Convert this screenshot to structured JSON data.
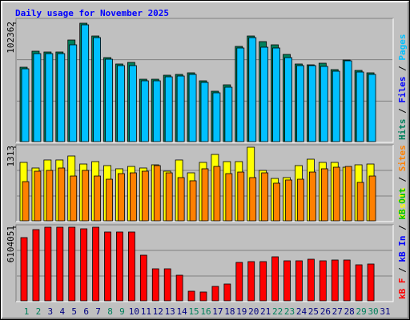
{
  "chart_data": [
    {
      "type": "bar",
      "title": "Daily usage for November 2025",
      "categories": [
        "1",
        "2",
        "3",
        "4",
        "5",
        "6",
        "7",
        "8",
        "9",
        "10",
        "11",
        "12",
        "13",
        "14",
        "15",
        "16",
        "17",
        "18",
        "19",
        "20",
        "21",
        "22",
        "23",
        "24",
        "25",
        "26",
        "27",
        "28",
        "29",
        "30",
        "31"
      ],
      "category_colors": [
        "#00805c",
        "#00805c",
        "#000080",
        "#000080",
        "#000080",
        "#000080",
        "#000080",
        "#00805c",
        "#00805c",
        "#000080",
        "#000080",
        "#000080",
        "#000080",
        "#000080",
        "#00805c",
        "#00805c",
        "#000080",
        "#000080",
        "#000080",
        "#000080",
        "#000080",
        "#00805c",
        "#00805c",
        "#000080",
        "#000080",
        "#000080",
        "#000080",
        "#000080",
        "#00805c",
        "#00805c",
        "#000080"
      ],
      "legend_separator": " / ",
      "ylim": [
        0,
        102362
      ],
      "yticks": [
        102362
      ],
      "series": [
        {
          "name": "Hits",
          "color": "#00805c",
          "values": [
            64320,
            78150,
            77460,
            77460,
            87830,
            102362,
            91290,
            72620,
            67090,
            68470,
            53940,
            53940,
            57400,
            58090,
            59480,
            52560,
            43570,
            49100,
            82300,
            91290,
            86450,
            83680,
            75380,
            67090,
            66390,
            67780,
            62240,
            70540,
            61550,
            59480,
            null
          ]
        },
        {
          "name": "Files",
          "color": "#0000ff",
          "values": [
            null,
            null,
            null,
            null,
            null,
            null,
            null,
            null,
            null,
            null,
            null,
            null,
            null,
            null,
            null,
            null,
            null,
            null,
            null,
            null,
            null,
            null,
            null,
            null,
            null,
            null,
            null,
            null,
            null,
            null,
            null
          ]
        },
        {
          "name": "Pages",
          "color": "#00c0ff",
          "values": [
            62940,
            76080,
            76080,
            76080,
            83680,
            100970,
            89910,
            71230,
            65700,
            65700,
            52560,
            52560,
            56020,
            56710,
            58090,
            51180,
            42190,
            47030,
            80920,
            89910,
            81610,
            80920,
            72620,
            65700,
            65700,
            65010,
            60860,
            69850,
            60170,
            58090,
            null
          ]
        }
      ]
    },
    {
      "type": "bar",
      "legend_separator": " / ",
      "ylim": [
        0,
        1313
      ],
      "yticks": [
        1313
      ],
      "series": [
        {
          "name": "Visits",
          "color": "#ffff00",
          "values": [
            1042,
            942,
            1085,
            1085,
            1156,
            1013,
            1056,
            985,
            928,
            970,
            942,
            999,
            885,
            1085,
            856,
            1042,
            1184,
            1056,
            1056,
            1313,
            899,
            756,
            771,
            985,
            1099,
            1042,
            1042,
            956,
            999,
            1013,
            null
          ]
        },
        {
          "name": "Sites",
          "color": "#ff8000",
          "values": [
            699,
            885,
            899,
            942,
            799,
            899,
            799,
            742,
            842,
            856,
            885,
            985,
            856,
            771,
            714,
            928,
            970,
            842,
            870,
            771,
            856,
            671,
            728,
            742,
            870,
            928,
            956,
            970,
            685,
            799,
            null
          ]
        }
      ]
    },
    {
      "type": "bar",
      "legend_separator": " / ",
      "ylim": [
        0,
        6104051
      ],
      "yticks": [
        6104051
      ],
      "series": [
        {
          "name": "kB F",
          "color": "#ff0000",
          "values": [
            5241570,
            5905060,
            6104051,
            6104051,
            6104051,
            5971410,
            6104051,
            5706010,
            5706010,
            5706010,
            3781890,
            2653960,
            2653960,
            2123170,
            796190,
            729840,
            1194280,
            1393330,
            3184750,
            3251100,
            3251100,
            3649200,
            3317450,
            3317450,
            3450150,
            3317450,
            3383800,
            3383800,
            2985710,
            3052050,
            null
          ]
        },
        {
          "name": "kB In",
          "color": "#0000ff",
          "values": [
            null,
            null,
            null,
            null,
            null,
            null,
            null,
            null,
            null,
            null,
            null,
            null,
            null,
            null,
            null,
            null,
            null,
            null,
            null,
            null,
            null,
            null,
            null,
            null,
            null,
            null,
            null,
            null,
            null,
            null,
            null
          ]
        },
        {
          "name": "kB Out",
          "color": "#00c000",
          "values": [
            null,
            null,
            null,
            null,
            null,
            null,
            null,
            null,
            null,
            null,
            null,
            null,
            null,
            null,
            null,
            null,
            null,
            null,
            null,
            null,
            null,
            null,
            null,
            null,
            null,
            null,
            null,
            null,
            null,
            null,
            null
          ]
        }
      ]
    }
  ]
}
